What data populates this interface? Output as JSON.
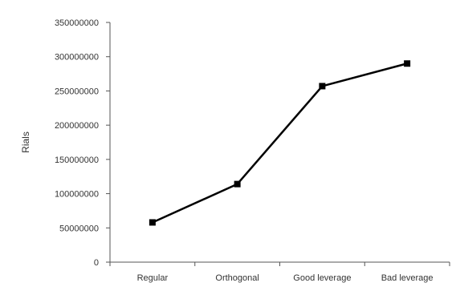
{
  "chart_data": {
    "type": "line",
    "title": "",
    "xlabel": "",
    "ylabel": "Rials",
    "categories": [
      "Regular",
      "Orthogonal",
      "Good leverage",
      "Bad leverage"
    ],
    "series": [
      {
        "values": [
          58000000,
          114000000,
          257000000,
          290000000
        ],
        "color": "#000000",
        "marker": "square"
      }
    ],
    "ylim": [
      0,
      350000000
    ],
    "yticks": [
      0,
      50000000,
      100000000,
      150000000,
      200000000,
      250000000,
      300000000,
      350000000
    ],
    "ytick_labels": [
      "0",
      "50000000",
      "100000000",
      "150000000",
      "200000000",
      "250000000",
      "300000000",
      "350000000"
    ],
    "grid": false,
    "legend": "none"
  }
}
